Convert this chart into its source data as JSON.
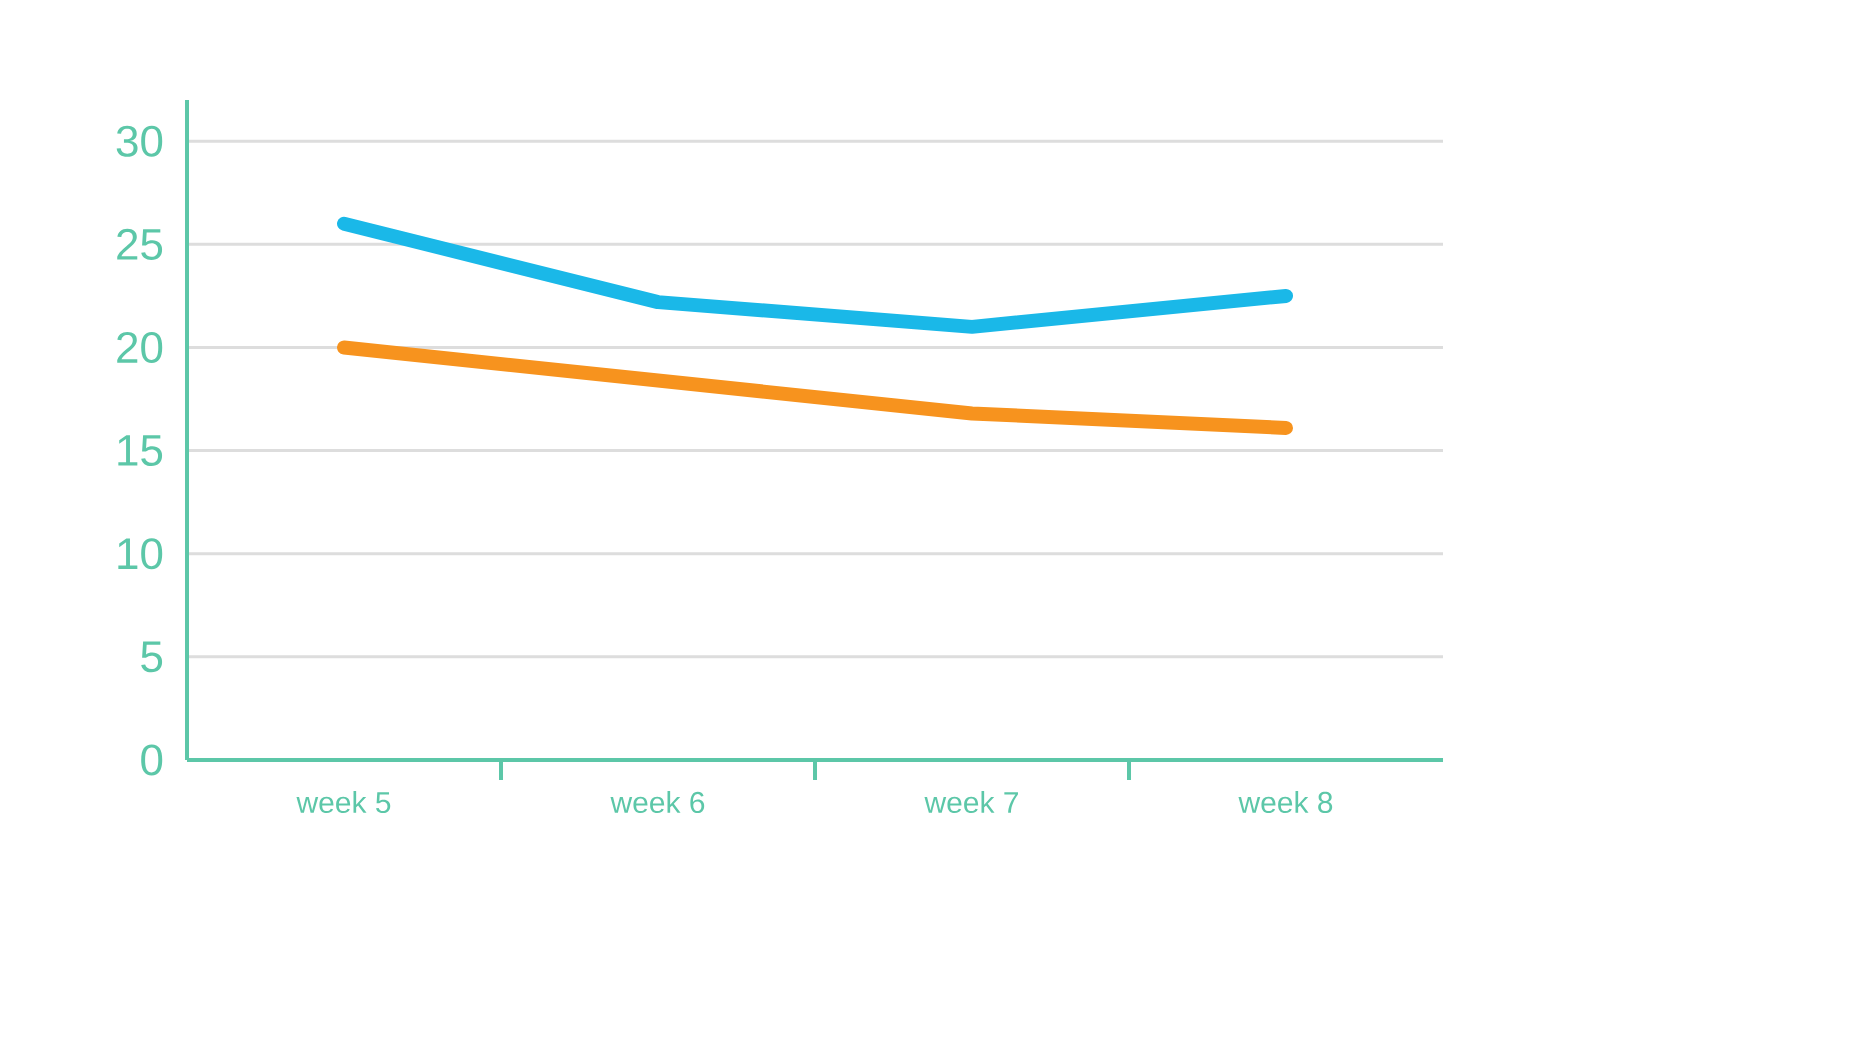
{
  "chart_data": {
    "type": "line",
    "categories": [
      "week 5",
      "week 6",
      "week 7",
      "week 8"
    ],
    "series": [
      {
        "color": "#1ab8e8",
        "values": [
          26,
          22.2,
          21,
          22.5
        ]
      },
      {
        "color": "#f7931e",
        "values": [
          20,
          18.4,
          16.8,
          16.1
        ]
      }
    ],
    "ylim": [
      0,
      32
    ],
    "yticks": [
      0,
      5,
      10,
      15,
      20,
      25,
      30
    ],
    "grid": "y",
    "marker": "none",
    "line_style": "solid"
  }
}
